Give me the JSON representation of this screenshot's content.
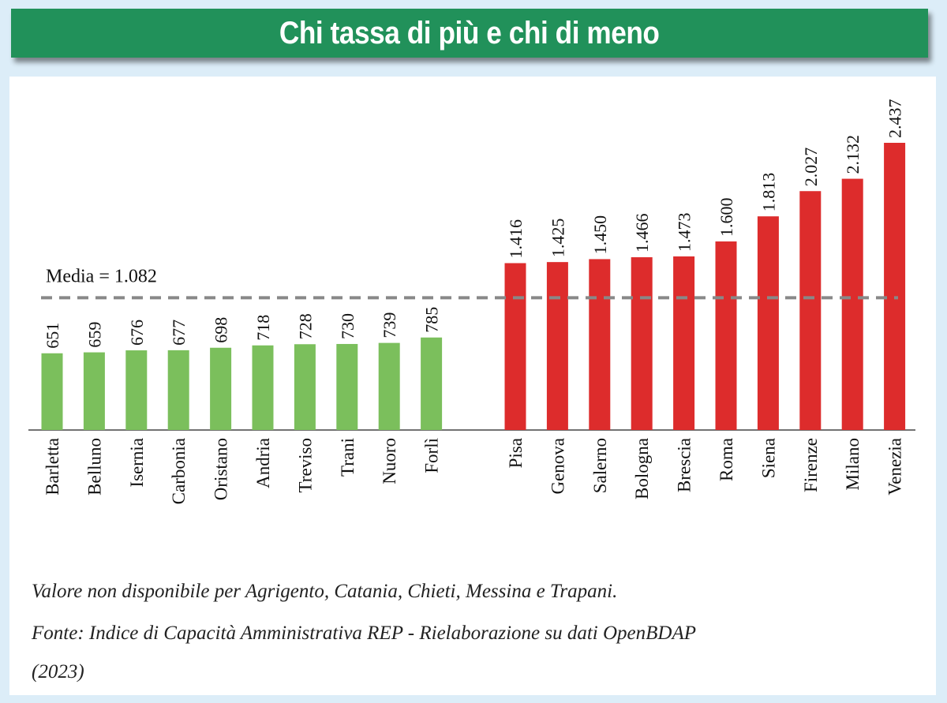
{
  "chart_data": {
    "type": "bar",
    "title": "Chi tassa di più e chi di meno",
    "categories": [
      "Barletta",
      "Belluno",
      "Isernia",
      "Carbonia",
      "Oristano",
      "Andria",
      "Treviso",
      "Trani",
      "Nuoro",
      "Forlì",
      "Pisa",
      "Genova",
      "Salerno",
      "Bologna",
      "Brescia",
      "Roma",
      "Siena",
      "Firenze",
      "Milano",
      "Venezia"
    ],
    "values": [
      651,
      659,
      676,
      677,
      698,
      718,
      728,
      730,
      739,
      785,
      1416,
      1425,
      1450,
      1466,
      1473,
      1600,
      1813,
      2027,
      2132,
      2437
    ],
    "value_labels": [
      "651",
      "659",
      "676",
      "677",
      "698",
      "718",
      "728",
      "730",
      "739",
      "785",
      "1.416",
      "1.425",
      "1.450",
      "1.466",
      "1.473",
      "1.600",
      "1.813",
      "2.027",
      "2.132",
      "2.437"
    ],
    "groups": [
      {
        "name": "low",
        "count": 10,
        "color": "#7bbf5c"
      },
      {
        "name": "high",
        "count": 10,
        "color": "#dd2c2c"
      }
    ],
    "reference_line": {
      "value": 1082,
      "label": "Media = 1.082",
      "color": "#888888",
      "style": "dashed"
    },
    "ylim": [
      0,
      2437
    ],
    "grid": false,
    "xlabel": "",
    "ylabel": ""
  },
  "notes": {
    "line1": "Valore non disponibile per Agrigento, Catania, Chieti, Messina e Trapani.",
    "line2": "Fonte: Indice di Capacità Amministrativa REP - Rielaborazione su dati OpenBDAP",
    "line3": "(2023)"
  }
}
